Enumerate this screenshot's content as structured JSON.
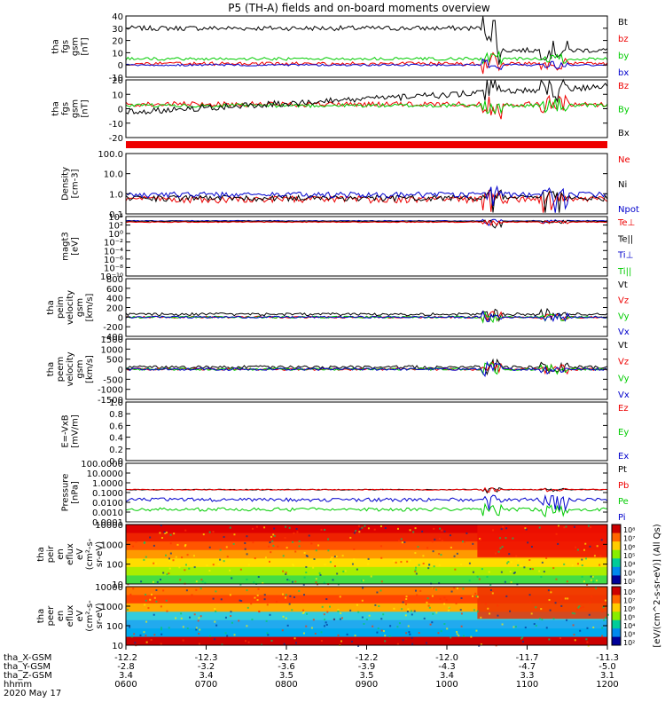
{
  "chart_data": {
    "type": "line",
    "title": "P5 (TH-A) fields and on-board moments overview",
    "date_label": "2020 May 17",
    "time_axis": {
      "row_labels": [
        "tha_X-GSM",
        "tha_Y-GSM",
        "tha_Z-GSM",
        "hhmm"
      ],
      "times": [
        "0600",
        "0700",
        "0800",
        "0900",
        "1000",
        "1100",
        "1200"
      ],
      "x_gsm": [
        "-12.2",
        "-12.3",
        "-12.3",
        "-12.2",
        "-12.0",
        "-11.7",
        "-11.3"
      ],
      "y_gsm": [
        "-2.8",
        "-3.2",
        "-3.6",
        "-3.9",
        "-4.3",
        "-4.7",
        "-5.0"
      ],
      "z_gsm": [
        "3.4",
        "3.4",
        "3.5",
        "3.5",
        "3.4",
        "3.3",
        "3.1"
      ]
    },
    "panels": [
      {
        "id": "fgs_mag",
        "ylabel": [
          "tha",
          "fgs",
          "gsm",
          "[nT]"
        ],
        "scale": "linear",
        "ylim": [
          -10,
          40
        ],
        "ticks": [
          "40",
          "30",
          "20",
          "10",
          "0",
          "-10"
        ],
        "legend": [
          {
            "label": "Bt",
            "color": "#000000"
          },
          {
            "label": "bz",
            "color": "#ee0000"
          },
          {
            "label": "by",
            "color": "#00cc00"
          },
          {
            "label": "bx",
            "color": "#0000cc"
          }
        ]
      },
      {
        "id": "fgs_comp",
        "ylabel": [
          "tha",
          "fgs",
          "gsm",
          "[nT]"
        ],
        "scale": "linear",
        "ylim": [
          -25,
          20
        ],
        "ticks": [
          "20",
          "10",
          "0",
          "-10",
          "-20"
        ],
        "legend": [
          {
            "label": "Bz",
            "color": "#ee0000"
          },
          {
            "label": "By",
            "color": "#00cc00"
          },
          {
            "label": "Bx",
            "color": "#000000"
          }
        ]
      },
      {
        "id": "density",
        "ylabel": [
          "Density",
          "[cm-3]"
        ],
        "scale": "log",
        "ylim": [
          0.03,
          300
        ],
        "ticks": [
          "100.0",
          "10.0",
          "1.0",
          "0.1"
        ],
        "legend": [
          {
            "label": "Ne",
            "color": "#ee0000"
          },
          {
            "label": "Ni",
            "color": "#000000"
          },
          {
            "label": "Npot",
            "color": "#0000cc"
          }
        ]
      },
      {
        "id": "temperature",
        "ylabel": [
          "magt3",
          "[eV]"
        ],
        "scale": "log",
        "ylim": [
          1e-10,
          10000.0
        ],
        "ticks": [
          "10⁴",
          "10²",
          "10⁰",
          "10⁻²",
          "10⁻⁴",
          "10⁻⁶",
          "10⁻⁸",
          "10⁻¹⁰"
        ],
        "legend": [
          {
            "label": "Te⊥",
            "color": "#ee0000"
          },
          {
            "label": "Te||",
            "color": "#000000"
          },
          {
            "label": "Ti⊥",
            "color": "#0000cc"
          },
          {
            "label": "Ti||",
            "color": "#00cc00"
          }
        ]
      },
      {
        "id": "peim_velocity",
        "ylabel": [
          "tha",
          "peim",
          "velocity",
          "gsm",
          "[km/s]"
        ],
        "scale": "linear",
        "ylim": [
          -400,
          800
        ],
        "ticks": [
          "800",
          "600",
          "400",
          "200",
          "0",
          "-200",
          "-400"
        ],
        "legend": [
          {
            "label": "Vt",
            "color": "#000000"
          },
          {
            "label": "Vz",
            "color": "#ee0000"
          },
          {
            "label": "Vy",
            "color": "#00cc00"
          },
          {
            "label": "Vx",
            "color": "#0000cc"
          }
        ]
      },
      {
        "id": "peem_velocity",
        "ylabel": [
          "tha",
          "peem",
          "velocity",
          "gsm",
          "[km/s]"
        ],
        "scale": "linear",
        "ylim": [
          -1500,
          1500
        ],
        "ticks": [
          "1500",
          "1000",
          "500",
          "0",
          "-500",
          "-1000",
          "-1500"
        ],
        "legend": [
          {
            "label": "Vt",
            "color": "#000000"
          },
          {
            "label": "Vz",
            "color": "#ee0000"
          },
          {
            "label": "Vy",
            "color": "#00cc00"
          },
          {
            "label": "Vx",
            "color": "#0000cc"
          }
        ]
      },
      {
        "id": "efield",
        "ylabel": [
          "E=-VxB",
          "[mV/m]"
        ],
        "scale": "linear",
        "ylim": [
          0,
          1
        ],
        "ticks": [
          "1.0",
          "0.8",
          "0.6",
          "0.4",
          "0.2",
          "0.0"
        ],
        "legend": [
          {
            "label": "Ez",
            "color": "#ee0000"
          },
          {
            "label": "Ey",
            "color": "#00cc00"
          },
          {
            "label": "Ex",
            "color": "#0000cc"
          }
        ]
      },
      {
        "id": "pressure",
        "ylabel": [
          "Pressure",
          "[nPa]"
        ],
        "scale": "log",
        "ylim": [
          0.0001,
          100
        ],
        "ticks": [
          "100.0000",
          "10.0000",
          "1.0000",
          "0.1000",
          "0.0100",
          "0.0010",
          "0.0001"
        ],
        "legend": [
          {
            "label": "Pt",
            "color": "#000000"
          },
          {
            "label": "Pb",
            "color": "#ee0000"
          },
          {
            "label": "Pe",
            "color": "#00cc00"
          },
          {
            "label": "Pi",
            "color": "#0000cc"
          }
        ]
      },
      {
        "id": "peir_eflux",
        "ylabel": [
          "tha",
          "peir",
          "en",
          "eflux",
          "eV",
          "(cm²-s-",
          "sr-eV)"
        ],
        "scale": "log",
        "ylim": [
          5,
          20000
        ],
        "ticks": [
          "10000",
          "1000",
          "100",
          "10"
        ]
      },
      {
        "id": "peer_eflux",
        "ylabel": [
          "tha",
          "peer",
          "en",
          "eflux",
          "eV",
          "(cm²-s-",
          "sr-eV)"
        ],
        "scale": "log",
        "ylim": [
          5,
          20000
        ],
        "ticks": [
          "10000",
          "1000",
          "100",
          "10"
        ]
      }
    ],
    "colorbar": {
      "label": "[eV/(cm^2-s-sr-eV)] (All Qs)",
      "top_ticks": [
        "10⁸",
        "10⁷",
        "10⁶",
        "10⁵",
        "10⁴",
        "10³",
        "10²"
      ],
      "bottom_ticks": [
        "10⁸",
        "10⁷",
        "10⁶",
        "10⁵",
        "10⁴",
        "10³",
        "10²"
      ]
    }
  }
}
